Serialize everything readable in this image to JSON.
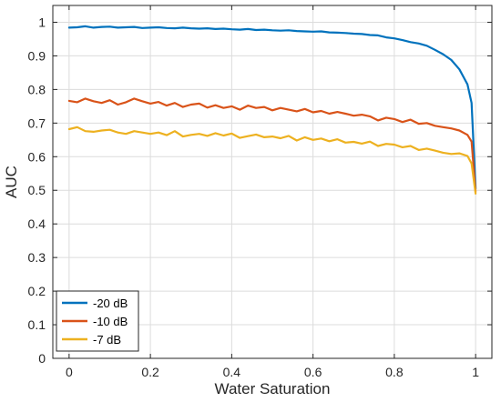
{
  "chart_data": {
    "type": "line",
    "title": "",
    "xlabel": "Water Saturation",
    "ylabel": "AUC",
    "xlim": [
      -0.04,
      1.04
    ],
    "ylim": [
      0,
      1.05
    ],
    "x_ticks": [
      0,
      0.2,
      0.4,
      0.6,
      0.8,
      1
    ],
    "x_tick_labels": [
      "0",
      "0.2",
      "0.4",
      "0.6",
      "0.8",
      "1"
    ],
    "y_ticks": [
      0,
      0.1,
      0.2,
      0.3,
      0.4,
      0.5,
      0.6,
      0.7,
      0.8,
      0.9,
      1
    ],
    "y_tick_labels": [
      "0",
      "0.1",
      "0.2",
      "0.3",
      "0.4",
      "0.5",
      "0.6",
      "0.7",
      "0.8",
      "0.9",
      "1"
    ],
    "grid": true,
    "legend_position": "bottom-left",
    "series": [
      {
        "name": "-20 dB",
        "color": "#0072BD",
        "x": [
          0,
          0.02,
          0.04,
          0.06,
          0.08,
          0.1,
          0.12,
          0.14,
          0.16,
          0.18,
          0.2,
          0.22,
          0.24,
          0.26,
          0.28,
          0.3,
          0.32,
          0.34,
          0.36,
          0.38,
          0.4,
          0.42,
          0.44,
          0.46,
          0.48,
          0.5,
          0.52,
          0.54,
          0.56,
          0.58,
          0.6,
          0.62,
          0.64,
          0.66,
          0.68,
          0.7,
          0.72,
          0.74,
          0.76,
          0.78,
          0.8,
          0.82,
          0.84,
          0.86,
          0.88,
          0.9,
          0.92,
          0.94,
          0.96,
          0.98,
          0.99,
          1
        ],
        "y": [
          0.984,
          0.985,
          0.988,
          0.984,
          0.986,
          0.987,
          0.984,
          0.985,
          0.986,
          0.983,
          0.984,
          0.985,
          0.983,
          0.982,
          0.984,
          0.982,
          0.981,
          0.982,
          0.98,
          0.981,
          0.979,
          0.978,
          0.98,
          0.977,
          0.978,
          0.976,
          0.975,
          0.976,
          0.974,
          0.973,
          0.972,
          0.973,
          0.97,
          0.969,
          0.968,
          0.966,
          0.965,
          0.962,
          0.961,
          0.955,
          0.952,
          0.947,
          0.941,
          0.937,
          0.93,
          0.918,
          0.905,
          0.888,
          0.86,
          0.815,
          0.76,
          0.505
        ]
      },
      {
        "name": "-10 dB",
        "color": "#D95319",
        "x": [
          0,
          0.02,
          0.04,
          0.06,
          0.08,
          0.1,
          0.12,
          0.14,
          0.16,
          0.18,
          0.2,
          0.22,
          0.24,
          0.26,
          0.28,
          0.3,
          0.32,
          0.34,
          0.36,
          0.38,
          0.4,
          0.42,
          0.44,
          0.46,
          0.48,
          0.5,
          0.52,
          0.54,
          0.56,
          0.58,
          0.6,
          0.62,
          0.64,
          0.66,
          0.68,
          0.7,
          0.72,
          0.74,
          0.76,
          0.78,
          0.8,
          0.82,
          0.84,
          0.86,
          0.88,
          0.9,
          0.92,
          0.94,
          0.96,
          0.98,
          0.99,
          1
        ],
        "y": [
          0.766,
          0.762,
          0.773,
          0.765,
          0.76,
          0.768,
          0.755,
          0.762,
          0.773,
          0.765,
          0.758,
          0.763,
          0.752,
          0.76,
          0.748,
          0.755,
          0.758,
          0.746,
          0.753,
          0.745,
          0.75,
          0.74,
          0.752,
          0.745,
          0.748,
          0.738,
          0.745,
          0.74,
          0.735,
          0.742,
          0.732,
          0.736,
          0.728,
          0.733,
          0.728,
          0.722,
          0.725,
          0.72,
          0.708,
          0.716,
          0.712,
          0.703,
          0.71,
          0.698,
          0.7,
          0.692,
          0.688,
          0.684,
          0.678,
          0.665,
          0.645,
          0.495
        ]
      },
      {
        "name": "-7 dB",
        "color": "#EDB120",
        "x": [
          0,
          0.02,
          0.04,
          0.06,
          0.08,
          0.1,
          0.12,
          0.14,
          0.16,
          0.18,
          0.2,
          0.22,
          0.24,
          0.26,
          0.28,
          0.3,
          0.32,
          0.34,
          0.36,
          0.38,
          0.4,
          0.42,
          0.44,
          0.46,
          0.48,
          0.5,
          0.52,
          0.54,
          0.56,
          0.58,
          0.6,
          0.62,
          0.64,
          0.66,
          0.68,
          0.7,
          0.72,
          0.74,
          0.76,
          0.78,
          0.8,
          0.82,
          0.84,
          0.86,
          0.88,
          0.9,
          0.92,
          0.94,
          0.96,
          0.98,
          0.99,
          1
        ],
        "y": [
          0.682,
          0.688,
          0.676,
          0.674,
          0.678,
          0.68,
          0.672,
          0.668,
          0.676,
          0.672,
          0.668,
          0.672,
          0.664,
          0.676,
          0.66,
          0.665,
          0.668,
          0.662,
          0.67,
          0.663,
          0.669,
          0.656,
          0.661,
          0.666,
          0.658,
          0.66,
          0.655,
          0.662,
          0.648,
          0.658,
          0.65,
          0.654,
          0.646,
          0.652,
          0.642,
          0.644,
          0.639,
          0.645,
          0.632,
          0.638,
          0.636,
          0.628,
          0.632,
          0.62,
          0.624,
          0.618,
          0.612,
          0.608,
          0.61,
          0.602,
          0.58,
          0.49
        ]
      }
    ]
  }
}
